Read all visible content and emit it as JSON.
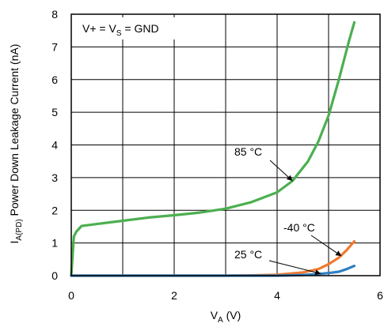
{
  "chart_data": {
    "type": "line",
    "title": "",
    "xlabel": {
      "main": "V",
      "sub": "A",
      "unit": " (V)"
    },
    "ylabel": {
      "main": "I",
      "sub": "A(PD)",
      "rest": "  Power Down Leakage Current (nA)"
    },
    "xlim": [
      0,
      6
    ],
    "ylim": [
      0,
      8
    ],
    "xticks": [
      "0",
      "2",
      "4",
      "6"
    ],
    "xtick_values": [
      0,
      2,
      4,
      6
    ],
    "yticks": [
      "0",
      "1",
      "2",
      "3",
      "4",
      "5",
      "6",
      "7",
      "8"
    ],
    "ytick_values": [
      0,
      1,
      2,
      3,
      4,
      5,
      6,
      7,
      8
    ],
    "grid": true,
    "legend": {
      "prefix": "V+ = V",
      "sub": "S",
      "suffix": " = GND"
    },
    "series": [
      {
        "name": "85 °C",
        "color": "#4caf50",
        "x": [
          0,
          0.05,
          0.1,
          0.2,
          0.5,
          1.0,
          1.5,
          2.0,
          2.5,
          3.0,
          3.5,
          4.0,
          4.3,
          4.6,
          4.8,
          5.0,
          5.2,
          5.3,
          5.4,
          5.5
        ],
        "y": [
          0,
          1.2,
          1.35,
          1.52,
          1.58,
          1.68,
          1.78,
          1.85,
          1.93,
          2.05,
          2.25,
          2.55,
          2.9,
          3.5,
          4.1,
          4.9,
          6.0,
          6.6,
          7.2,
          7.75
        ]
      },
      {
        "name": "-40 °C",
        "color": "#f07a30",
        "x": [
          0,
          1,
          2,
          3,
          3.5,
          4.0,
          4.5,
          4.8,
          5.0,
          5.2,
          5.35,
          5.5
        ],
        "y": [
          0,
          0,
          0,
          0,
          0.01,
          0.03,
          0.1,
          0.2,
          0.35,
          0.55,
          0.78,
          1.05
        ]
      },
      {
        "name": "25 °C",
        "color": "#2f7fc1",
        "x": [
          0,
          1,
          2,
          3,
          4.0,
          4.5,
          4.8,
          5.0,
          5.2,
          5.35,
          5.5
        ],
        "y": [
          0,
          0,
          0,
          0,
          0,
          0.02,
          0.05,
          0.08,
          0.12,
          0.2,
          0.3
        ]
      }
    ],
    "annotations": [
      {
        "text": "85 °C",
        "series": "85 °C"
      },
      {
        "text": "-40 °C",
        "series": "-40 °C"
      },
      {
        "text": "25 °C",
        "series": "25 °C"
      }
    ]
  }
}
